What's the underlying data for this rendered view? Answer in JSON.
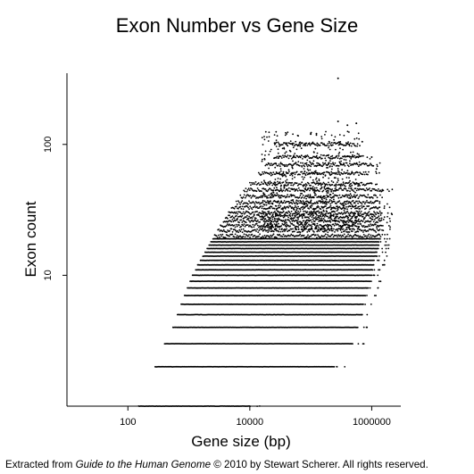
{
  "title": "Exon Number vs Gene Size",
  "footer": {
    "prefix": "Extracted from ",
    "book": "Guide to the Human Genome",
    "suffix": " © 2010 by Stewart Scherer.  All rights reserved."
  },
  "chart_data": {
    "type": "scatter",
    "title": "Exon Number vs Gene Size",
    "xlabel": "Gene size (bp)",
    "ylabel": "Exon count",
    "x_scale": "log",
    "y_scale": "log",
    "xlim": [
      10,
      3000000
    ],
    "ylim": [
      1,
      350
    ],
    "x_ticks": [
      {
        "value": 100,
        "label": "100"
      },
      {
        "value": 10000,
        "label": "10000"
      },
      {
        "value": 1000000,
        "label": "1000000"
      }
    ],
    "y_ticks": [
      {
        "value": 10,
        "label": "10"
      },
      {
        "value": 100,
        "label": "100"
      }
    ],
    "grid": false,
    "legend": "none",
    "point_color": "#000000",
    "series": [
      {
        "rows": [
          {
            "exons": 1,
            "min_size": 150,
            "max_size": 10000
          },
          {
            "exons": 2,
            "min_size": 280,
            "max_size": 250000
          },
          {
            "exons": 3,
            "min_size": 400,
            "max_size": 500000
          },
          {
            "exons": 4,
            "min_size": 550,
            "max_size": 600000
          },
          {
            "exons": 5,
            "min_size": 650,
            "max_size": 680000
          },
          {
            "exons": 6,
            "min_size": 750,
            "max_size": 720000
          },
          {
            "exons": 7,
            "min_size": 850,
            "max_size": 800000
          },
          {
            "exons": 8,
            "min_size": 950,
            "max_size": 900000
          },
          {
            "exons": 9,
            "min_size": 1050,
            "max_size": 950000
          },
          {
            "exons": 10,
            "min_size": 1150,
            "max_size": 1000000
          },
          {
            "exons": 11,
            "min_size": 1300,
            "max_size": 1050000
          },
          {
            "exons": 12,
            "min_size": 1400,
            "max_size": 1100000
          },
          {
            "exons": 13,
            "min_size": 1550,
            "max_size": 1100000
          },
          {
            "exons": 14,
            "min_size": 1700,
            "max_size": 1200000
          },
          {
            "exons": 15,
            "min_size": 1850,
            "max_size": 1200000
          },
          {
            "exons": 16,
            "min_size": 2000,
            "max_size": 1300000
          },
          {
            "exons": 17,
            "min_size": 2150,
            "max_size": 1300000
          },
          {
            "exons": 18,
            "min_size": 2300,
            "max_size": 1300000
          },
          {
            "exons": 19,
            "min_size": 2500,
            "max_size": 1400000
          },
          {
            "exons": 20,
            "min_size": 2650,
            "max_size": 1400000
          },
          {
            "exons": 22,
            "min_size": 3000,
            "max_size": 1400000
          },
          {
            "exons": 24,
            "min_size": 3300,
            "max_size": 1500000
          },
          {
            "exons": 26,
            "min_size": 3700,
            "max_size": 1500000
          },
          {
            "exons": 28,
            "min_size": 4000,
            "max_size": 1500000
          },
          {
            "exons": 30,
            "min_size": 4500,
            "max_size": 1500000
          },
          {
            "exons": 33,
            "min_size": 5000,
            "max_size": 1400000
          },
          {
            "exons": 36,
            "min_size": 6000,
            "max_size": 1300000
          },
          {
            "exons": 40,
            "min_size": 7000,
            "max_size": 1200000
          },
          {
            "exons": 45,
            "min_size": 8000,
            "max_size": 1600000
          },
          {
            "exons": 50,
            "min_size": 10000,
            "max_size": 1000000
          },
          {
            "exons": 60,
            "min_size": 14000,
            "max_size": 900000
          },
          {
            "exons": 70,
            "min_size": 18000,
            "max_size": 1100000
          },
          {
            "exons": 80,
            "min_size": 25000,
            "max_size": 700000
          },
          {
            "exons": 100,
            "min_size": 30000,
            "max_size": 500000
          }
        ],
        "outliers": [
          {
            "x": 100000,
            "y": 120
          },
          {
            "x": 200000,
            "y": 105
          },
          {
            "x": 300000,
            "y": 100
          },
          {
            "x": 700000,
            "y": 105
          },
          {
            "x": 400000,
            "y": 140
          },
          {
            "x": 280000,
            "y": 150
          },
          {
            "x": 560000,
            "y": 145
          },
          {
            "x": 1000000,
            "y": 80
          },
          {
            "x": 1200000,
            "y": 65
          },
          {
            "x": 1500000,
            "y": 45
          },
          {
            "x": 280000,
            "y": 320
          }
        ]
      }
    ]
  }
}
